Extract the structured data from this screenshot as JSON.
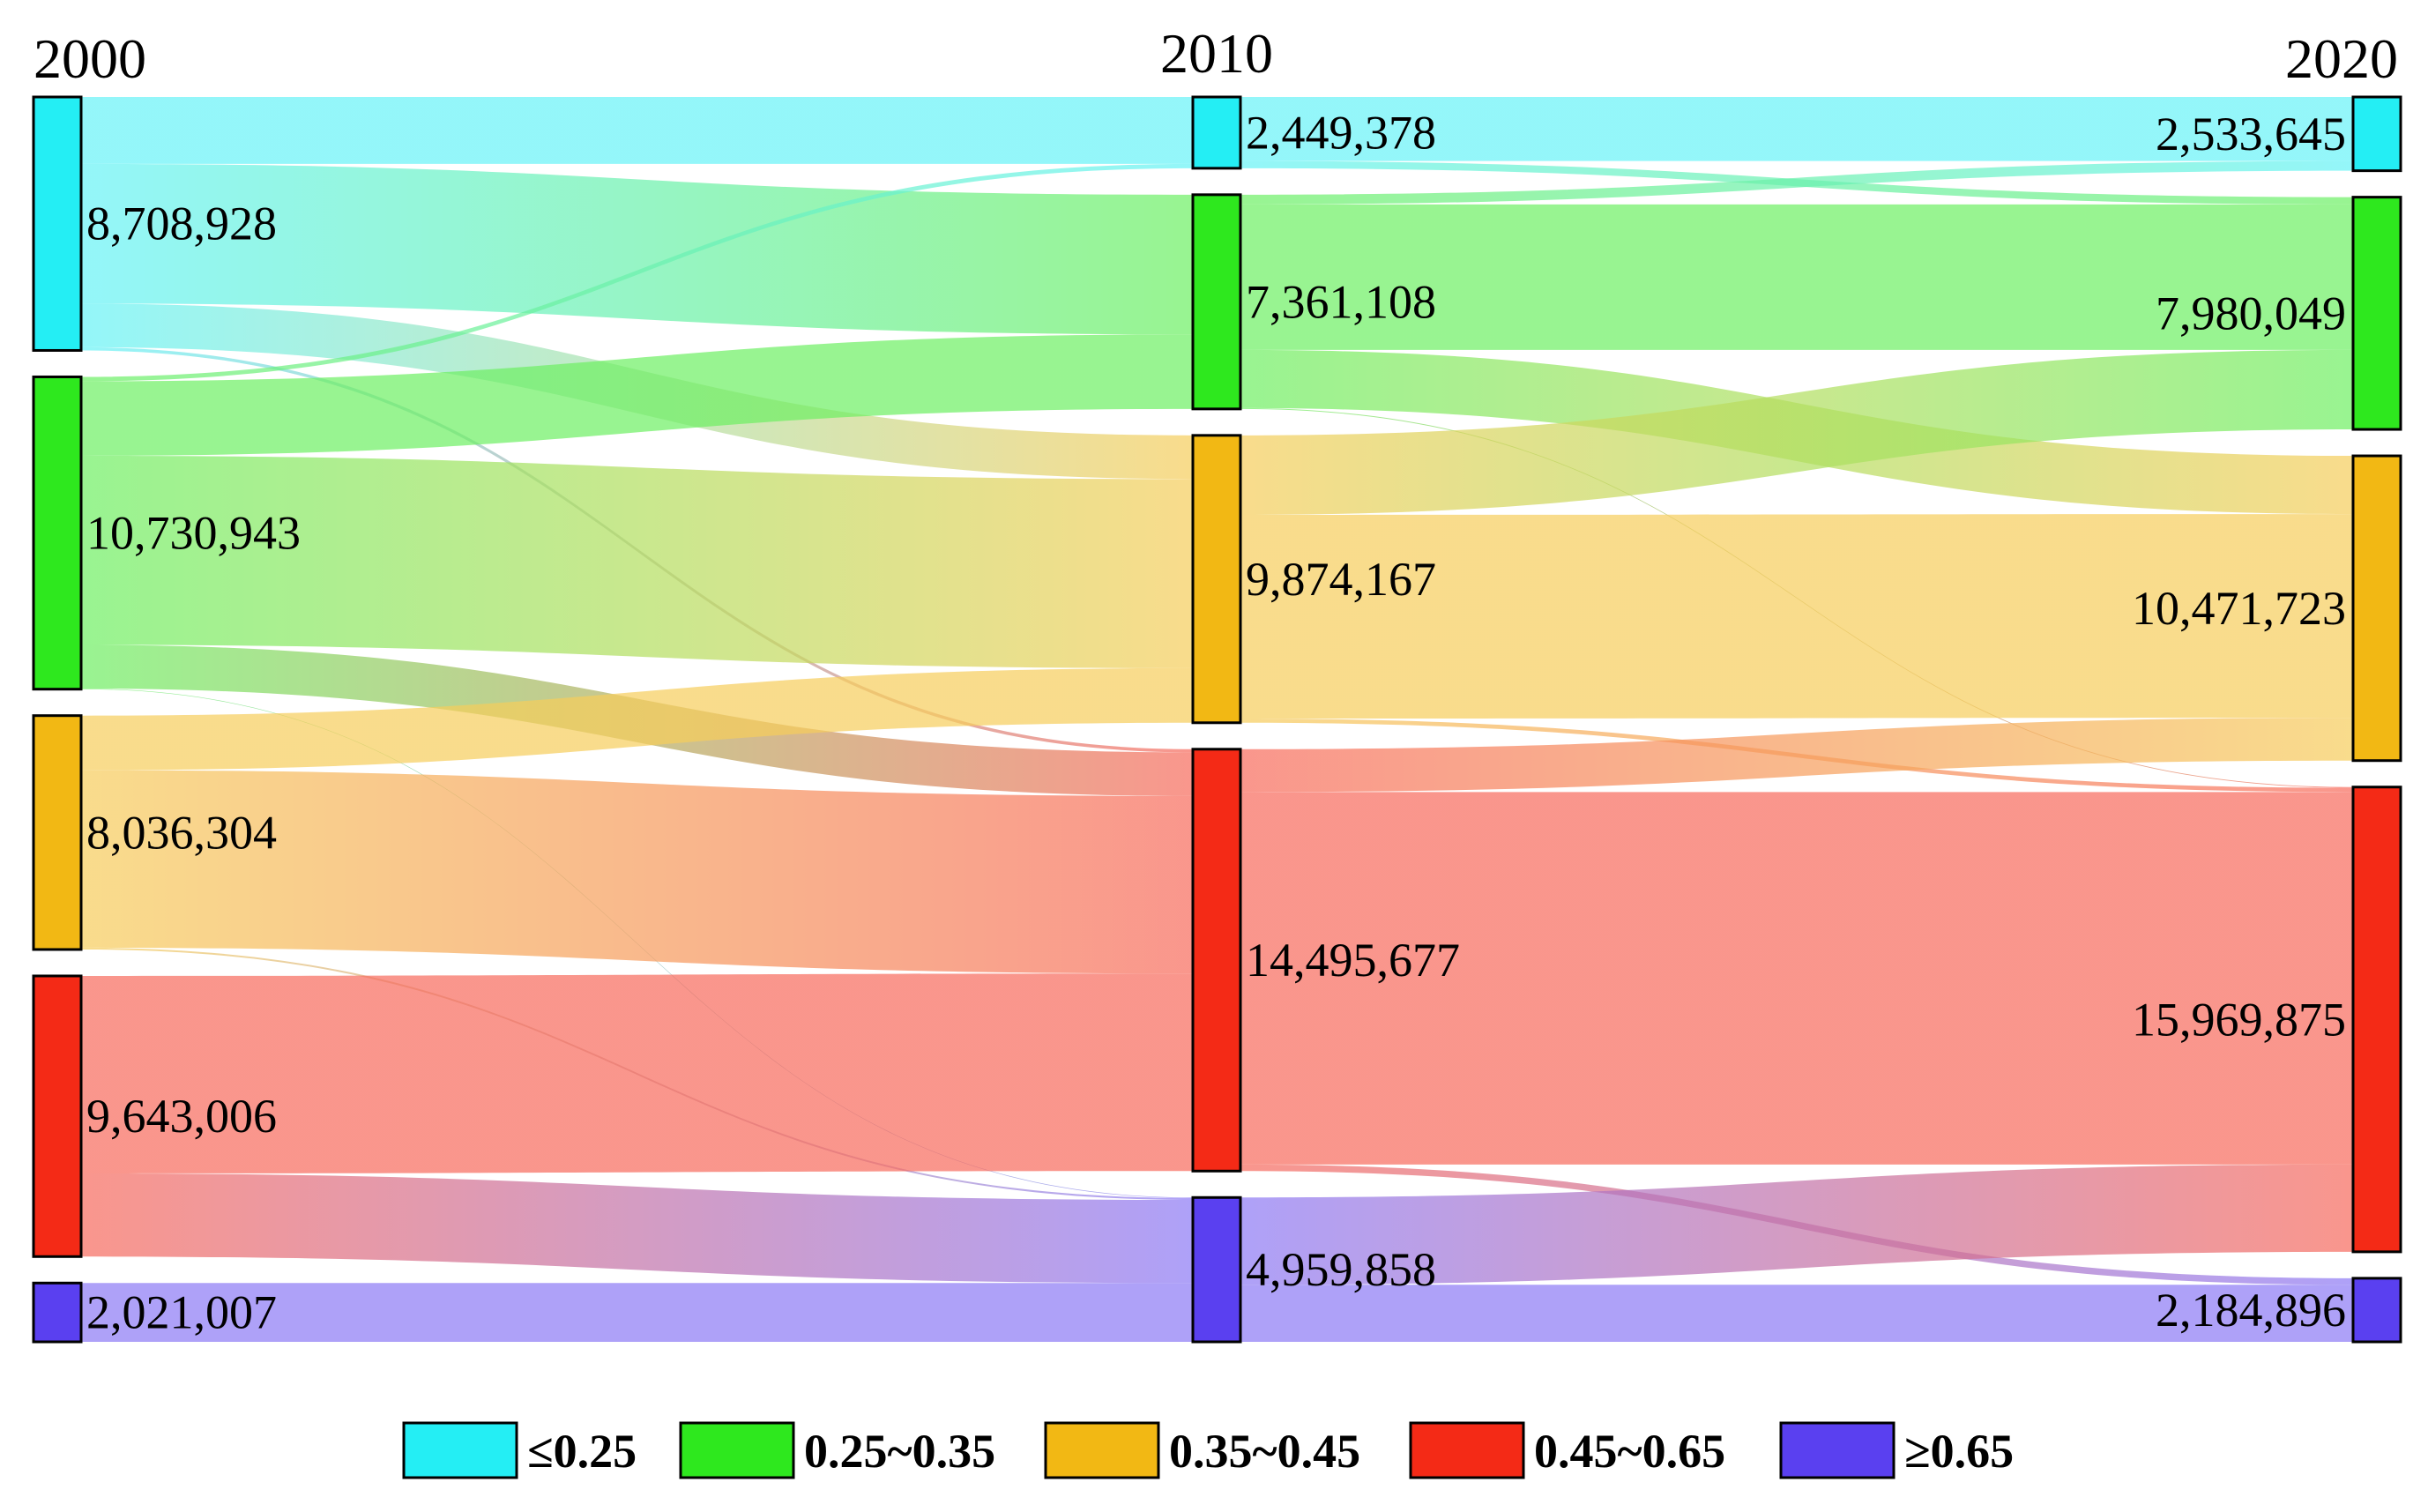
{
  "chart_data": {
    "type": "sankey",
    "years": [
      "2000",
      "2010",
      "2020"
    ],
    "categories": [
      {
        "id": "c1",
        "label": "≤0.25",
        "color": "#24eef4"
      },
      {
        "id": "c2",
        "label": "0.25~0.35",
        "color": "#2ee81e"
      },
      {
        "id": "c3",
        "label": "0.35~0.45",
        "color": "#f2b814"
      },
      {
        "id": "c4",
        "label": "0.45~0.65",
        "color": "#f42a16"
      },
      {
        "id": "c5",
        "label": "≥0.65",
        "color": "#5a40f0"
      }
    ],
    "nodes": {
      "2000": [
        8708928,
        10730943,
        8036304,
        9643006,
        2021007
      ],
      "2010": [
        2449378,
        7361108,
        9874167,
        14495677,
        4959858
      ],
      "2020": [
        2533645,
        7980049,
        10471723,
        15969875,
        2184896
      ]
    },
    "node_labels": {
      "2000": [
        "8,708,928",
        "10,730,943",
        "8,036,304",
        "9,643,006",
        "2,021,007"
      ],
      "2010": [
        "2,449,378",
        "7,361,108",
        "9,874,167",
        "14,495,677",
        "4,959,858"
      ],
      "2020": [
        "2,533,645",
        "7,980,049",
        "10,471,723",
        "15,969,875",
        "2,184,896"
      ]
    },
    "flows_2000_2010": [
      [
        2300000,
        4800000,
        1500000,
        108928,
        0
      ],
      [
        149378,
        2561108,
        6500000,
        1500000,
        20457
      ],
      [
        0,
        0,
        1874167,
        6100000,
        62137
      ],
      [
        0,
        0,
        0,
        6786749,
        2856257
      ],
      [
        0,
        0,
        0,
        0,
        2021007
      ]
    ],
    "flows_2010_2020": [
      [
        2200000,
        249378,
        0,
        0,
        0
      ],
      [
        333645,
        5000000,
        2000000,
        27463,
        0
      ],
      [
        0,
        2730671,
        7000000,
        143496,
        0
      ],
      [
        0,
        0,
        1471723,
        12798916,
        225038
      ],
      [
        0,
        0,
        0,
        3000000,
        1959858
      ]
    ]
  }
}
